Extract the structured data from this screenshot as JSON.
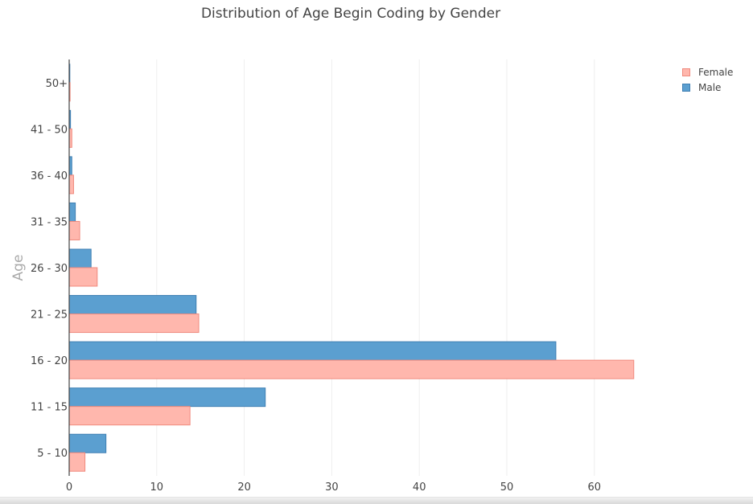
{
  "chart_data": {
    "type": "bar",
    "orientation": "horizontal",
    "title": "Distribution of Age Begin Coding by Gender",
    "xlabel": "",
    "ylabel": "Age",
    "xlim": [
      0,
      68
    ],
    "xticks": [
      0,
      10,
      20,
      30,
      40,
      50,
      60
    ],
    "categories": [
      "5 - 10",
      "11 - 15",
      "16 - 20",
      "21 - 25",
      "26 - 30",
      "31 - 35",
      "36 - 40",
      "41 - 50",
      "50+"
    ],
    "series": [
      {
        "name": "Female",
        "color": "#ffb7ad",
        "stroke": "#f08a7d",
        "values": [
          1.8,
          13.8,
          64.5,
          14.8,
          3.2,
          1.2,
          0.5,
          0.3,
          0.1
        ]
      },
      {
        "name": "Male",
        "color": "#5b9fd0",
        "stroke": "#3f7fb3",
        "values": [
          4.2,
          22.4,
          55.6,
          14.5,
          2.5,
          0.7,
          0.3,
          0.15,
          0.05
        ]
      }
    ],
    "grid": true,
    "legend_position": "top-right"
  }
}
